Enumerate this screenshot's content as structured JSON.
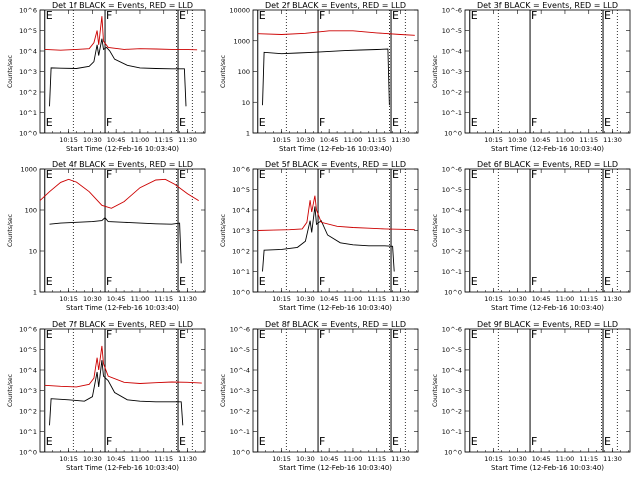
{
  "chart_data": [
    {
      "type": "line",
      "title": "Det 1f BLACK = Events, RED = LLD",
      "xlabel": "Start Time (12-Feb-16 10:03:40)",
      "ylabel": "Counts/sec",
      "x_tick_labels": [
        "10:15",
        "10:30",
        "10:45",
        "11:00",
        "11:15",
        "11:30"
      ],
      "x_tick_minutes": [
        15,
        30,
        45,
        60,
        75,
        90
      ],
      "xlim_minutes": [
        -3,
        101
      ],
      "yscale": "log",
      "ylim": [
        1,
        1000000
      ],
      "y_tick_labels": [
        "10^0",
        "10^1",
        "10^2",
        "10^3",
        "10^4",
        "10^5",
        "10^6"
      ],
      "markers": [
        {
          "label": "E",
          "minute": 0
        },
        {
          "label": "F",
          "minute": 38
        },
        {
          "label": "E",
          "minute": 84
        }
      ],
      "dotted_lines_minutes": [
        18,
        83,
        93
      ],
      "series": [
        {
          "color": "#000000",
          "points": [
            [
              3,
              20
            ],
            [
              4,
              1500
            ],
            [
              10,
              1450
            ],
            [
              20,
              1400
            ],
            [
              28,
              1800
            ],
            [
              31,
              3000
            ],
            [
              33,
              20000
            ],
            [
              34,
              6000
            ],
            [
              36,
              40000
            ],
            [
              37,
              12000
            ],
            [
              39,
              15000
            ],
            [
              41,
              10000
            ],
            [
              44,
              4000
            ],
            [
              52,
              2000
            ],
            [
              60,
              1500
            ],
            [
              70,
              1400
            ],
            [
              80,
              1350
            ],
            [
              88,
              1350
            ],
            [
              89,
              20
            ]
          ]
        },
        {
          "color": "#cc0000",
          "points": [
            [
              0,
              12000
            ],
            [
              10,
              11000
            ],
            [
              20,
              12000
            ],
            [
              28,
              13000
            ],
            [
              31,
              25000
            ],
            [
              33,
              100000
            ],
            [
              34,
              20000
            ],
            [
              36,
              500000
            ],
            [
              37,
              30000
            ],
            [
              40,
              15000
            ],
            [
              50,
              12000
            ],
            [
              60,
              13000
            ],
            [
              70,
              12500
            ],
            [
              80,
              12000
            ],
            [
              88,
              12000
            ],
            [
              96,
              11500
            ]
          ]
        }
      ]
    },
    {
      "type": "line",
      "title": "Det 2f BLACK = Events, RED = LLD",
      "xlabel": "Start Time (12-Feb-16 10:03:40)",
      "ylabel": "Counts/sec",
      "x_tick_labels": [
        "10:15",
        "10:30",
        "10:45",
        "11:00",
        "11:15",
        "11:30"
      ],
      "x_tick_minutes": [
        15,
        30,
        45,
        60,
        75,
        90
      ],
      "xlim_minutes": [
        -3,
        101
      ],
      "yscale": "log",
      "ylim": [
        1,
        10000
      ],
      "y_tick_labels": [
        "1",
        "10",
        "100",
        "1000",
        "10000"
      ],
      "markers": [
        {
          "label": "E",
          "minute": 0
        },
        {
          "label": "F",
          "minute": 38
        },
        {
          "label": "E",
          "minute": 84
        }
      ],
      "dotted_lines_minutes": [
        18,
        83,
        93
      ],
      "series": [
        {
          "color": "#000000",
          "points": [
            [
              3,
              8
            ],
            [
              4,
              420
            ],
            [
              15,
              380
            ],
            [
              25,
              400
            ],
            [
              35,
              420
            ],
            [
              45,
              450
            ],
            [
              55,
              480
            ],
            [
              65,
              500
            ],
            [
              75,
              520
            ],
            [
              82,
              540
            ],
            [
              83,
              8
            ]
          ]
        },
        {
          "color": "#cc0000",
          "points": [
            [
              0,
              1700
            ],
            [
              15,
              1600
            ],
            [
              30,
              1750
            ],
            [
              45,
              2100
            ],
            [
              60,
              2100
            ],
            [
              75,
              1800
            ],
            [
              90,
              1600
            ],
            [
              99,
              1500
            ]
          ]
        }
      ]
    },
    {
      "type": "line",
      "title": "Det 3f BLACK = Events, RED = LLD",
      "xlabel": "Start Time (12-Feb-16 10:03:40)",
      "ylabel": "Counts/sec",
      "x_tick_labels": [
        "10:15",
        "10:30",
        "10:45",
        "11:00",
        "11:15",
        "11:30"
      ],
      "x_tick_minutes": [
        15,
        30,
        45,
        60,
        75,
        90
      ],
      "xlim_minutes": [
        -3,
        101
      ],
      "yscale": "log",
      "ylim": [
        1,
        10
      ],
      "y_tick_labels": [
        "10^0",
        "10^-1",
        "10^-2",
        "10^-3",
        "10^-4",
        "10^-5",
        "10^-6"
      ],
      "markers": [
        {
          "label": "E",
          "minute": 0
        },
        {
          "label": "F",
          "minute": 38
        },
        {
          "label": "E",
          "minute": 84
        }
      ],
      "dotted_lines_minutes": [
        18,
        83,
        93
      ],
      "series": []
    },
    {
      "type": "line",
      "title": "Det 4f BLACK = Events, RED = LLD",
      "xlabel": "Start Time (12-Feb-16 10:03:40)",
      "ylabel": "Counts/sec",
      "x_tick_labels": [
        "10:15",
        "10:30",
        "10:45",
        "11:00",
        "11:15",
        "11:30"
      ],
      "x_tick_minutes": [
        15,
        30,
        45,
        60,
        75,
        90
      ],
      "xlim_minutes": [
        -3,
        101
      ],
      "yscale": "log",
      "ylim": [
        1,
        1000
      ],
      "y_tick_labels": [
        "1",
        "10",
        "100",
        "1000"
      ],
      "markers": [
        {
          "label": "E",
          "minute": 0
        },
        {
          "label": "F",
          "minute": 38
        },
        {
          "label": "E",
          "minute": 84
        }
      ],
      "dotted_lines_minutes": [
        18,
        83,
        93
      ],
      "series": [
        {
          "color": "#000000",
          "points": [
            [
              3,
              45
            ],
            [
              10,
              48
            ],
            [
              20,
              50
            ],
            [
              30,
              52
            ],
            [
              36,
              55
            ],
            [
              38,
              65
            ],
            [
              40,
              52
            ],
            [
              50,
              50
            ],
            [
              60,
              48
            ],
            [
              70,
              46
            ],
            [
              80,
              45
            ],
            [
              85,
              48
            ],
            [
              86,
              5
            ]
          ]
        },
        {
          "color": "#cc0000",
          "points": [
            [
              -3,
              170
            ],
            [
              3,
              280
            ],
            [
              10,
              470
            ],
            [
              15,
              560
            ],
            [
              20,
              480
            ],
            [
              28,
              280
            ],
            [
              36,
              130
            ],
            [
              42,
              110
            ],
            [
              50,
              160
            ],
            [
              60,
              350
            ],
            [
              70,
              540
            ],
            [
              76,
              560
            ],
            [
              82,
              420
            ],
            [
              90,
              250
            ],
            [
              97,
              170
            ]
          ]
        }
      ]
    },
    {
      "type": "line",
      "title": "Det 5f BLACK = Events, RED = LLD",
      "xlabel": "Start Time (12-Feb-16 10:03:40)",
      "ylabel": "Counts/sec",
      "x_tick_labels": [
        "10:15",
        "10:30",
        "10:45",
        "11:00",
        "11:15",
        "11:30"
      ],
      "x_tick_minutes": [
        15,
        30,
        45,
        60,
        75,
        90
      ],
      "xlim_minutes": [
        -3,
        101
      ],
      "yscale": "log",
      "ylim": [
        1,
        1000000
      ],
      "y_tick_labels": [
        "10^0",
        "10^1",
        "10^2",
        "10^3",
        "10^4",
        "10^5",
        "10^6"
      ],
      "markers": [
        {
          "label": "E",
          "minute": 0
        },
        {
          "label": "F",
          "minute": 38
        },
        {
          "label": "E",
          "minute": 84
        }
      ],
      "dotted_lines_minutes": [
        18,
        83,
        93
      ],
      "series": [
        {
          "color": "#000000",
          "points": [
            [
              3,
              10
            ],
            [
              4,
              110
            ],
            [
              15,
              120
            ],
            [
              25,
              150
            ],
            [
              30,
              300
            ],
            [
              33,
              3000
            ],
            [
              34,
              800
            ],
            [
              36,
              15000
            ],
            [
              37,
              2000
            ],
            [
              40,
              3000
            ],
            [
              44,
              600
            ],
            [
              52,
              250
            ],
            [
              60,
              200
            ],
            [
              70,
              180
            ],
            [
              80,
              180
            ],
            [
              85,
              170
            ],
            [
              86,
              10
            ]
          ]
        },
        {
          "color": "#cc0000",
          "points": [
            [
              0,
              1000
            ],
            [
              10,
              1050
            ],
            [
              20,
              1100
            ],
            [
              28,
              1200
            ],
            [
              31,
              2500
            ],
            [
              33,
              30000
            ],
            [
              34,
              8000
            ],
            [
              36,
              50000
            ],
            [
              37,
              10000
            ],
            [
              40,
              2500
            ],
            [
              50,
              1600
            ],
            [
              60,
              1400
            ],
            [
              70,
              1300
            ],
            [
              80,
              1200
            ],
            [
              90,
              1150
            ],
            [
              99,
              1100
            ]
          ]
        }
      ]
    },
    {
      "type": "line",
      "title": "Det 6f BLACK = Events, RED = LLD",
      "xlabel": "Start Time (12-Feb-16 10:03:40)",
      "ylabel": "Counts/sec",
      "x_tick_labels": [
        "10:15",
        "10:30",
        "10:45",
        "11:00",
        "11:15",
        "11:30"
      ],
      "x_tick_minutes": [
        15,
        30,
        45,
        60,
        75,
        90
      ],
      "xlim_minutes": [
        -3,
        101
      ],
      "yscale": "log",
      "ylim": [
        1,
        10
      ],
      "y_tick_labels": [
        "10^0",
        "10^-1",
        "10^-2",
        "10^-3",
        "10^-4",
        "10^-5",
        "10^-6"
      ],
      "markers": [
        {
          "label": "E",
          "minute": 0
        },
        {
          "label": "F",
          "minute": 38
        },
        {
          "label": "E",
          "minute": 84
        }
      ],
      "dotted_lines_minutes": [
        18,
        83,
        93
      ],
      "series": []
    },
    {
      "type": "line",
      "title": "Det 7f BLACK = Events, RED = LLD",
      "xlabel": "Start Time (12-Feb-16 10:03:40)",
      "ylabel": "Counts/sec",
      "x_tick_labels": [
        "10:15",
        "10:30",
        "10:45",
        "11:00",
        "11:15",
        "11:30"
      ],
      "x_tick_minutes": [
        15,
        30,
        45,
        60,
        75,
        90
      ],
      "xlim_minutes": [
        -3,
        101
      ],
      "yscale": "log",
      "ylim": [
        1,
        1000000
      ],
      "y_tick_labels": [
        "10^0",
        "10^1",
        "10^2",
        "10^3",
        "10^4",
        "10^5",
        "10^6"
      ],
      "markers": [
        {
          "label": "E",
          "minute": 0
        },
        {
          "label": "F",
          "minute": 38
        },
        {
          "label": "E",
          "minute": 84
        }
      ],
      "dotted_lines_minutes": [
        18,
        83,
        93
      ],
      "series": [
        {
          "color": "#000000",
          "points": [
            [
              3,
              20
            ],
            [
              4,
              400
            ],
            [
              15,
              350
            ],
            [
              25,
              300
            ],
            [
              30,
              500
            ],
            [
              33,
              8000
            ],
            [
              34,
              1500
            ],
            [
              36,
              30000
            ],
            [
              37,
              5000
            ],
            [
              40,
              3000
            ],
            [
              44,
              800
            ],
            [
              52,
              350
            ],
            [
              60,
              300
            ],
            [
              70,
              280
            ],
            [
              80,
              280
            ],
            [
              86,
              280
            ],
            [
              87,
              20
            ]
          ]
        },
        {
          "color": "#cc0000",
          "points": [
            [
              0,
              1800
            ],
            [
              10,
              1600
            ],
            [
              20,
              1500
            ],
            [
              28,
              2000
            ],
            [
              31,
              4000
            ],
            [
              33,
              40000
            ],
            [
              34,
              10000
            ],
            [
              36,
              150000
            ],
            [
              37,
              20000
            ],
            [
              40,
              5000
            ],
            [
              50,
              2500
            ],
            [
              60,
              2200
            ],
            [
              70,
              2400
            ],
            [
              80,
              2600
            ],
            [
              90,
              2500
            ],
            [
              99,
              2300
            ]
          ]
        }
      ]
    },
    {
      "type": "line",
      "title": "Det 8f BLACK = Events, RED = LLD",
      "xlabel": "Start Time (12-Feb-16 10:03:40)",
      "ylabel": "Counts/sec",
      "x_tick_labels": [
        "10:15",
        "10:30",
        "10:45",
        "11:00",
        "11:15",
        "11:30"
      ],
      "x_tick_minutes": [
        15,
        30,
        45,
        60,
        75,
        90
      ],
      "xlim_minutes": [
        -3,
        101
      ],
      "yscale": "log",
      "ylim": [
        1,
        10
      ],
      "y_tick_labels": [
        "10^0",
        "10^-1",
        "10^-2",
        "10^-3",
        "10^-4",
        "10^-5",
        "10^-6"
      ],
      "markers": [
        {
          "label": "E",
          "minute": 0
        },
        {
          "label": "F",
          "minute": 38
        },
        {
          "label": "E",
          "minute": 84
        }
      ],
      "dotted_lines_minutes": [
        18,
        83,
        93
      ],
      "series": []
    },
    {
      "type": "line",
      "title": "Det 9f BLACK = Events, RED = LLD",
      "xlabel": "Start Time (12-Feb-16 10:03:40)",
      "ylabel": "Counts/sec",
      "x_tick_labels": [
        "10:15",
        "10:30",
        "10:45",
        "11:00",
        "11:15",
        "11:30"
      ],
      "x_tick_minutes": [
        15,
        30,
        45,
        60,
        75,
        90
      ],
      "xlim_minutes": [
        -3,
        101
      ],
      "yscale": "log",
      "ylim": [
        1,
        10
      ],
      "y_tick_labels": [
        "10^0",
        "10^-1",
        "10^-2",
        "10^-3",
        "10^-4",
        "10^-5",
        "10^-6"
      ],
      "markers": [
        {
          "label": "E",
          "minute": 0
        },
        {
          "label": "F",
          "minute": 38
        },
        {
          "label": "E",
          "minute": 84
        }
      ],
      "dotted_lines_minutes": [
        18,
        83,
        93
      ],
      "series": []
    }
  ]
}
